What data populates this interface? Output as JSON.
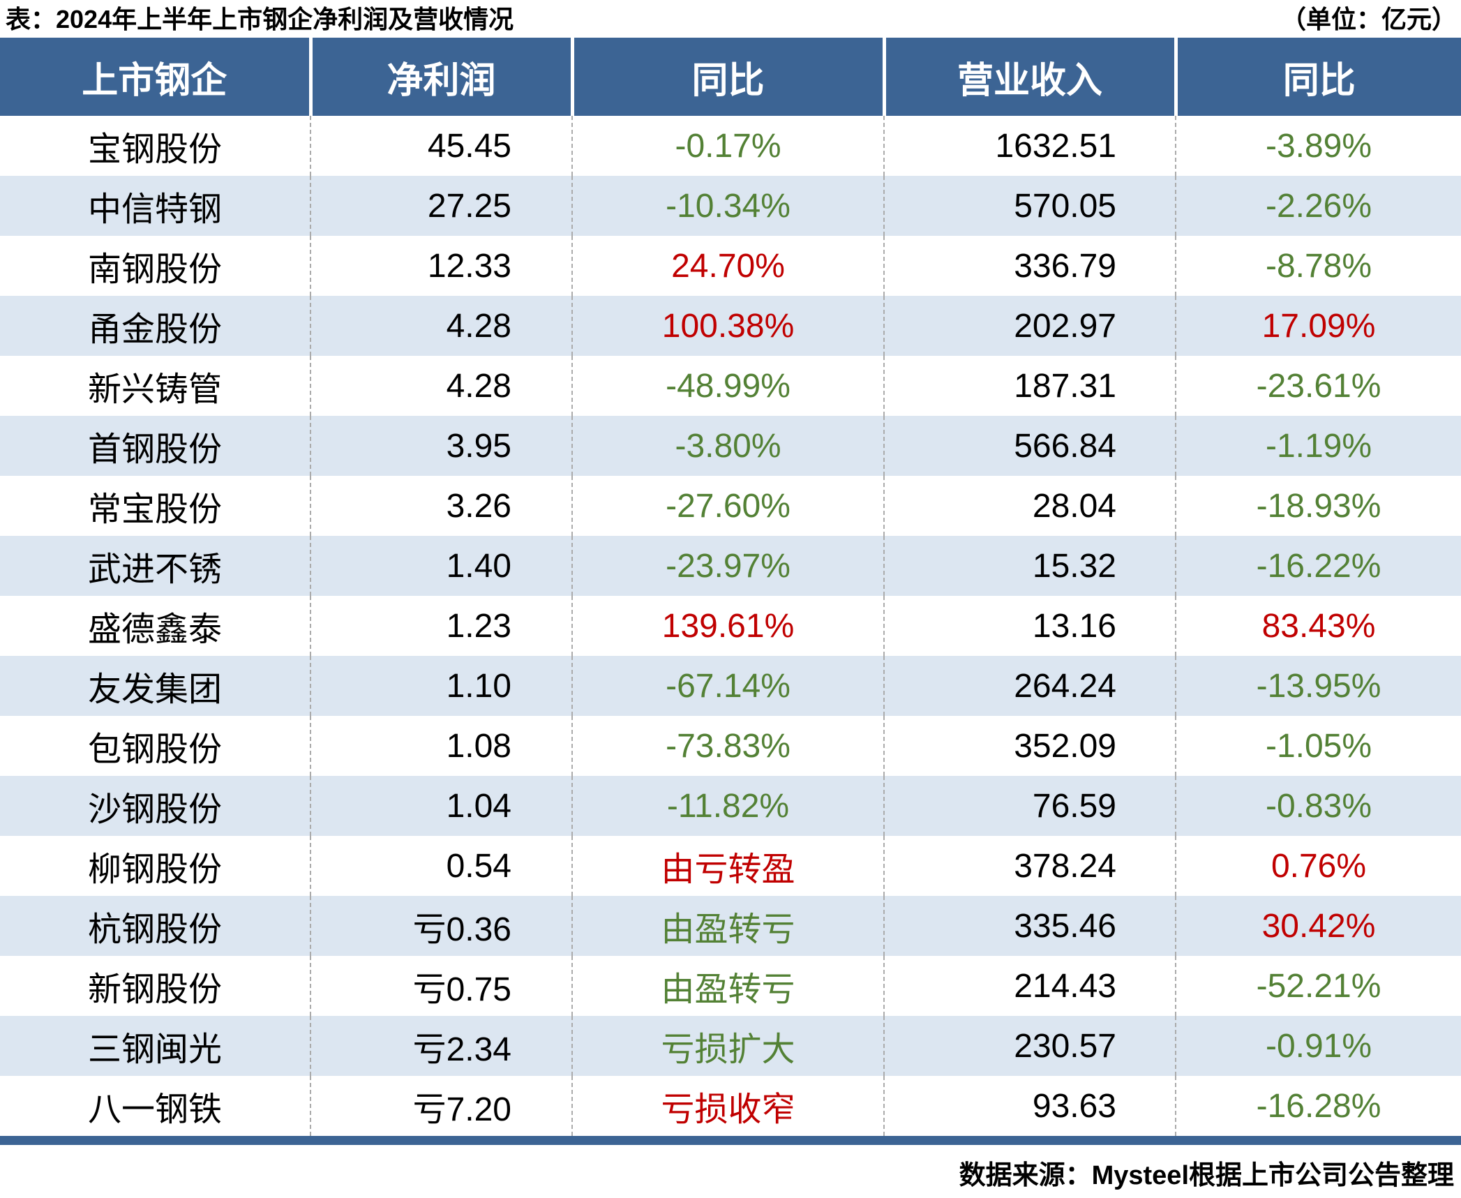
{
  "page": {
    "title": "表：2024年上半年上市钢企净利润及营收情况",
    "unit_note": "（单位：亿元）",
    "source_note": "数据来源：Mysteel根据上市公司公告整理"
  },
  "colors": {
    "header_bg": "#3C6494",
    "stripe_bg": "#DCE6F1",
    "positive_red": "#C00000",
    "negative_green": "#538135",
    "divider_gray": "#ABABAB"
  },
  "table": {
    "headers": [
      "上市钢企",
      "净利润",
      "同比",
      "营业收入",
      "同比"
    ],
    "rows": [
      {
        "company": "宝钢股份",
        "net_profit": "45.45",
        "profit_yoy": "-0.17%",
        "profit_yoy_color": "green",
        "revenue": "1632.51",
        "revenue_yoy": "-3.89%",
        "revenue_yoy_color": "green"
      },
      {
        "company": "中信特钢",
        "net_profit": "27.25",
        "profit_yoy": "-10.34%",
        "profit_yoy_color": "green",
        "revenue": "570.05",
        "revenue_yoy": "-2.26%",
        "revenue_yoy_color": "green"
      },
      {
        "company": "南钢股份",
        "net_profit": "12.33",
        "profit_yoy": "24.70%",
        "profit_yoy_color": "red",
        "revenue": "336.79",
        "revenue_yoy": "-8.78%",
        "revenue_yoy_color": "green"
      },
      {
        "company": "甬金股份",
        "net_profit": "4.28",
        "profit_yoy": "100.38%",
        "profit_yoy_color": "red",
        "revenue": "202.97",
        "revenue_yoy": "17.09%",
        "revenue_yoy_color": "red"
      },
      {
        "company": "新兴铸管",
        "net_profit": "4.28",
        "profit_yoy": "-48.99%",
        "profit_yoy_color": "green",
        "revenue": "187.31",
        "revenue_yoy": "-23.61%",
        "revenue_yoy_color": "green"
      },
      {
        "company": "首钢股份",
        "net_profit": "3.95",
        "profit_yoy": "-3.80%",
        "profit_yoy_color": "green",
        "revenue": "566.84",
        "revenue_yoy": "-1.19%",
        "revenue_yoy_color": "green"
      },
      {
        "company": "常宝股份",
        "net_profit": "3.26",
        "profit_yoy": "-27.60%",
        "profit_yoy_color": "green",
        "revenue": "28.04",
        "revenue_yoy": "-18.93%",
        "revenue_yoy_color": "green"
      },
      {
        "company": "武进不锈",
        "net_profit": "1.40",
        "profit_yoy": "-23.97%",
        "profit_yoy_color": "green",
        "revenue": "15.32",
        "revenue_yoy": "-16.22%",
        "revenue_yoy_color": "green"
      },
      {
        "company": "盛德鑫泰",
        "net_profit": "1.23",
        "profit_yoy": "139.61%",
        "profit_yoy_color": "red",
        "revenue": "13.16",
        "revenue_yoy": "83.43%",
        "revenue_yoy_color": "red"
      },
      {
        "company": "友发集团",
        "net_profit": "1.10",
        "profit_yoy": "-67.14%",
        "profit_yoy_color": "green",
        "revenue": "264.24",
        "revenue_yoy": "-13.95%",
        "revenue_yoy_color": "green"
      },
      {
        "company": "包钢股份",
        "net_profit": "1.08",
        "profit_yoy": "-73.83%",
        "profit_yoy_color": "green",
        "revenue": "352.09",
        "revenue_yoy": "-1.05%",
        "revenue_yoy_color": "green"
      },
      {
        "company": "沙钢股份",
        "net_profit": "1.04",
        "profit_yoy": "-11.82%",
        "profit_yoy_color": "green",
        "revenue": "76.59",
        "revenue_yoy": "-0.83%",
        "revenue_yoy_color": "green"
      },
      {
        "company": "柳钢股份",
        "net_profit": "0.54",
        "profit_yoy": "由亏转盈",
        "profit_yoy_color": "red",
        "revenue": "378.24",
        "revenue_yoy": "0.76%",
        "revenue_yoy_color": "red"
      },
      {
        "company": "杭钢股份",
        "net_profit": "亏0.36",
        "profit_yoy": "由盈转亏",
        "profit_yoy_color": "green",
        "revenue": "335.46",
        "revenue_yoy": "30.42%",
        "revenue_yoy_color": "red"
      },
      {
        "company": "新钢股份",
        "net_profit": "亏0.75",
        "profit_yoy": "由盈转亏",
        "profit_yoy_color": "green",
        "revenue": "214.43",
        "revenue_yoy": "-52.21%",
        "revenue_yoy_color": "green"
      },
      {
        "company": "三钢闽光",
        "net_profit": "亏2.34",
        "profit_yoy": "亏损扩大",
        "profit_yoy_color": "green",
        "revenue": "230.57",
        "revenue_yoy": "-0.91%",
        "revenue_yoy_color": "green"
      },
      {
        "company": "八一钢铁",
        "net_profit": "亏7.20",
        "profit_yoy": "亏损收窄",
        "profit_yoy_color": "red",
        "revenue": "93.63",
        "revenue_yoy": "-16.28%",
        "revenue_yoy_color": "green"
      }
    ]
  },
  "chart_data": {
    "type": "table",
    "title": "2024年上半年上市钢企净利润及营收情况",
    "unit": "亿元",
    "columns": [
      "上市钢企",
      "净利润",
      "同比",
      "营业收入",
      "同比"
    ],
    "rows": [
      {
        "company": "宝钢股份",
        "net_profit": 45.45,
        "profit_yoy": -0.17,
        "revenue": 1632.51,
        "revenue_yoy": -3.89
      },
      {
        "company": "中信特钢",
        "net_profit": 27.25,
        "profit_yoy": -10.34,
        "revenue": 570.05,
        "revenue_yoy": -2.26
      },
      {
        "company": "南钢股份",
        "net_profit": 12.33,
        "profit_yoy": 24.7,
        "revenue": 336.79,
        "revenue_yoy": -8.78
      },
      {
        "company": "甬金股份",
        "net_profit": 4.28,
        "profit_yoy": 100.38,
        "revenue": 202.97,
        "revenue_yoy": 17.09
      },
      {
        "company": "新兴铸管",
        "net_profit": 4.28,
        "profit_yoy": -48.99,
        "revenue": 187.31,
        "revenue_yoy": -23.61
      },
      {
        "company": "首钢股份",
        "net_profit": 3.95,
        "profit_yoy": -3.8,
        "revenue": 566.84,
        "revenue_yoy": -1.19
      },
      {
        "company": "常宝股份",
        "net_profit": 3.26,
        "profit_yoy": -27.6,
        "revenue": 28.04,
        "revenue_yoy": -18.93
      },
      {
        "company": "武进不锈",
        "net_profit": 1.4,
        "profit_yoy": -23.97,
        "revenue": 15.32,
        "revenue_yoy": -16.22
      },
      {
        "company": "盛德鑫泰",
        "net_profit": 1.23,
        "profit_yoy": 139.61,
        "revenue": 13.16,
        "revenue_yoy": 83.43
      },
      {
        "company": "友发集团",
        "net_profit": 1.1,
        "profit_yoy": -67.14,
        "revenue": 264.24,
        "revenue_yoy": -13.95
      },
      {
        "company": "包钢股份",
        "net_profit": 1.08,
        "profit_yoy": -73.83,
        "revenue": 352.09,
        "revenue_yoy": -1.05
      },
      {
        "company": "沙钢股份",
        "net_profit": 1.04,
        "profit_yoy": -11.82,
        "revenue": 76.59,
        "revenue_yoy": -0.83
      },
      {
        "company": "柳钢股份",
        "net_profit": 0.54,
        "profit_yoy": "由亏转盈",
        "revenue": 378.24,
        "revenue_yoy": 0.76
      },
      {
        "company": "杭钢股份",
        "net_profit": -0.36,
        "profit_yoy": "由盈转亏",
        "revenue": 335.46,
        "revenue_yoy": 30.42
      },
      {
        "company": "新钢股份",
        "net_profit": -0.75,
        "profit_yoy": "由盈转亏",
        "revenue": 214.43,
        "revenue_yoy": -52.21
      },
      {
        "company": "三钢闽光",
        "net_profit": -2.34,
        "profit_yoy": "亏损扩大",
        "revenue": 230.57,
        "revenue_yoy": -0.91
      },
      {
        "company": "八一钢铁",
        "net_profit": -7.2,
        "profit_yoy": "亏损收窄",
        "revenue": 93.63,
        "revenue_yoy": -16.28
      }
    ]
  }
}
